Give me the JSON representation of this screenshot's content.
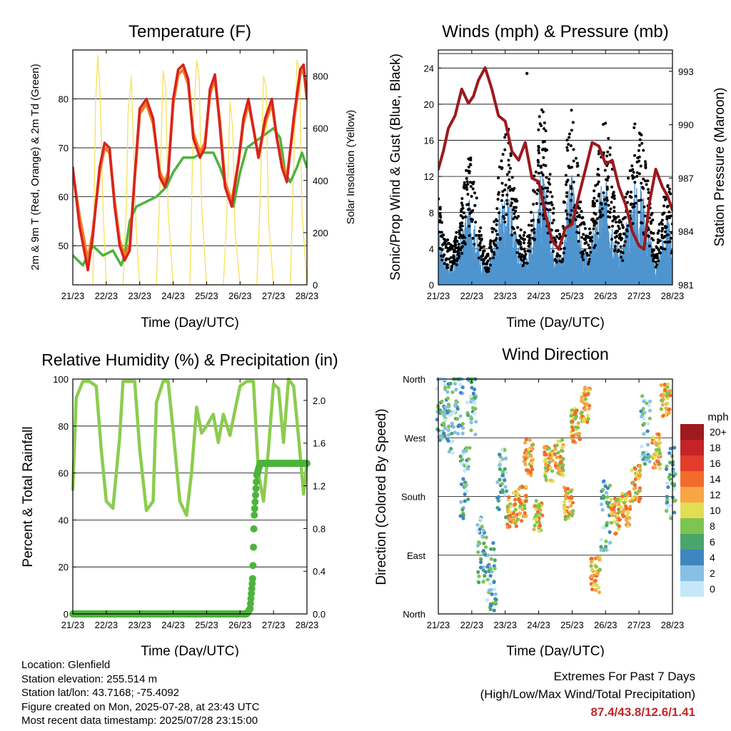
{
  "colors": {
    "temp2m": "#d7231f",
    "temp9m": "#f47d20",
    "dewpoint": "#4db33d",
    "solar": "#f7e15a",
    "sonic": "#4f95cf",
    "gust": "#000000",
    "pressure": "#9b1a1e",
    "rh": "#8ccc4f",
    "precip": "#4db33d",
    "extremes": "#c1272d"
  },
  "x_ticks": [
    "21/23",
    "22/23",
    "23/23",
    "24/23",
    "25/23",
    "26/23",
    "27/23",
    "28/23"
  ],
  "x_label": "Time (Day/UTC)",
  "chart_data": [
    {
      "id": "temperature",
      "type": "line",
      "title": "Temperature (F)",
      "xlabel": "Time (Day/UTC)",
      "ylabel": "2m & 9m T (Red, Orange) & 2m Td (Green)",
      "ylabel_right": "Solar Insolation (Yellow)",
      "ylim": [
        42,
        90
      ],
      "y_ticks": [
        50,
        60,
        70,
        80
      ],
      "ylim_right": [
        0,
        900
      ],
      "y_ticks_right": [
        0,
        200,
        400,
        600,
        800
      ],
      "x_range_days": [
        0,
        7
      ],
      "series": [
        {
          "key": "t2m",
          "color": "#d7231f",
          "x": [
            0,
            0.2,
            0.45,
            0.6,
            0.8,
            0.95,
            1.1,
            1.25,
            1.4,
            1.55,
            1.7,
            1.85,
            2.0,
            2.2,
            2.4,
            2.6,
            2.75,
            2.85,
            3.0,
            3.15,
            3.3,
            3.45,
            3.6,
            3.8,
            3.95,
            4.1,
            4.25,
            4.4,
            4.55,
            4.75,
            4.95,
            5.1,
            5.25,
            5.4,
            5.55,
            5.75,
            5.95,
            6.1,
            6.25,
            6.4,
            6.6,
            6.8,
            6.9,
            7.0
          ],
          "y": [
            66,
            54,
            45,
            52,
            66,
            71,
            70,
            58,
            50,
            47,
            49,
            64,
            78,
            80,
            76,
            64,
            62,
            64,
            80,
            86,
            87,
            84,
            72,
            68,
            70,
            82,
            85,
            74,
            62,
            58,
            67,
            76,
            80,
            74,
            68,
            76,
            80,
            72,
            66,
            63,
            76,
            86,
            87,
            80
          ]
        },
        {
          "key": "t9m",
          "color": "#f47d20",
          "x": [
            0,
            0.2,
            0.45,
            0.6,
            0.8,
            0.95,
            1.1,
            1.25,
            1.4,
            1.55,
            1.7,
            1.85,
            2.0,
            2.2,
            2.4,
            2.6,
            2.75,
            2.85,
            3.0,
            3.15,
            3.3,
            3.45,
            3.6,
            3.8,
            3.95,
            4.1,
            4.25,
            4.4,
            4.55,
            4.75,
            4.95,
            5.1,
            5.25,
            5.4,
            5.55,
            5.75,
            5.95,
            6.1,
            6.25,
            6.4,
            6.6,
            6.8,
            6.9,
            7.0
          ],
          "y": [
            65,
            56,
            47,
            53,
            65,
            70,
            69,
            59,
            51,
            48,
            50,
            64,
            77,
            79,
            75,
            65,
            63,
            65,
            79,
            85,
            86,
            83,
            73,
            69,
            71,
            81,
            84,
            75,
            63,
            59,
            67,
            75,
            79,
            74,
            68,
            75,
            79,
            72,
            67,
            64,
            75,
            85,
            86,
            80
          ]
        },
        {
          "key": "td2m",
          "color": "#4db33d",
          "x": [
            0,
            0.3,
            0.6,
            0.9,
            1.2,
            1.45,
            1.55,
            1.7,
            1.9,
            2.2,
            2.5,
            2.8,
            3.0,
            3.3,
            3.6,
            3.9,
            4.2,
            4.4,
            4.6,
            4.8,
            5.0,
            5.2,
            5.4,
            5.6,
            5.8,
            6.0,
            6.2,
            6.35,
            6.5,
            6.7,
            6.85,
            7.0
          ],
          "y": [
            48,
            46,
            50,
            48,
            49,
            46,
            48,
            55,
            58,
            59,
            60,
            62,
            65,
            68,
            68,
            69,
            69,
            66,
            62,
            58,
            65,
            70,
            71,
            72,
            73,
            74,
            72,
            65,
            63,
            66,
            69,
            66
          ]
        },
        {
          "key": "solar",
          "color": "#f7e15a",
          "axis": "right",
          "x": [
            0.6,
            0.68,
            0.75,
            0.82,
            0.9,
            1.0,
            1.3,
            1.5,
            1.6,
            1.65,
            1.75,
            1.82,
            1.9,
            2.0,
            2.3,
            2.5,
            2.6,
            2.7,
            2.78,
            2.85,
            3.0,
            3.3,
            3.5,
            3.6,
            3.7,
            3.78,
            3.85,
            4.0,
            4.3,
            4.5,
            4.6,
            4.7,
            4.78,
            4.85,
            5.0,
            5.3,
            5.5,
            5.6,
            5.7,
            5.78,
            5.85,
            6.0,
            6.3,
            6.5,
            6.6,
            6.7,
            6.78,
            6.85,
            7.0
          ],
          "y": [
            0,
            700,
            880,
            720,
            300,
            0,
            0,
            0,
            300,
            650,
            800,
            500,
            200,
            0,
            0,
            0,
            350,
            820,
            750,
            280,
            0,
            0,
            0,
            600,
            860,
            800,
            300,
            0,
            0,
            0,
            250,
            700,
            600,
            200,
            0,
            0,
            0,
            320,
            800,
            760,
            250,
            0,
            0,
            0,
            450,
            860,
            820,
            280,
            0
          ]
        }
      ]
    },
    {
      "id": "winds",
      "type": "scatter",
      "title": "Winds (mph) & Pressure (mb)",
      "xlabel": "Time (Day/UTC)",
      "ylabel": "Sonic/Prop Wind & Gust (Blue, Black)",
      "ylabel_right": "Station Pressure (Maroon)",
      "ylim": [
        0,
        26
      ],
      "y_ticks": [
        0,
        4,
        8,
        12,
        16,
        20,
        24
      ],
      "ylim_right": [
        981,
        994.2
      ],
      "y_ticks_right": [
        981,
        984,
        987,
        990,
        993
      ],
      "x_range_days": [
        0,
        7
      ],
      "series": [
        {
          "key": "wind_envelope",
          "color": "#4f95cf",
          "x": [
            0,
            0.2,
            0.4,
            0.6,
            0.8,
            0.95,
            1.1,
            1.3,
            1.5,
            1.7,
            1.9,
            2.1,
            2.3,
            2.5,
            2.7,
            2.9,
            3.1,
            3.3,
            3.5,
            3.7,
            3.85,
            4.0,
            4.15,
            4.3,
            4.5,
            4.7,
            4.9,
            5.1,
            5.3,
            5.5,
            5.7,
            5.9,
            6.1,
            6.3,
            6.5,
            6.7,
            6.85,
            7.0
          ],
          "y": [
            6,
            3,
            2,
            4,
            7,
            9,
            6,
            3,
            2,
            5,
            9,
            10,
            6,
            3,
            4,
            9,
            12,
            8,
            4,
            3,
            9,
            12,
            8,
            4,
            3,
            7,
            11,
            10,
            5,
            4,
            8,
            11,
            10,
            6,
            2,
            5,
            7,
            5
          ]
        },
        {
          "key": "gust_envelope",
          "color": "#000000",
          "x": [
            0,
            0.2,
            0.4,
            0.6,
            0.8,
            0.95,
            1.1,
            1.3,
            1.5,
            1.7,
            1.9,
            2.1,
            2.3,
            2.5,
            2.7,
            2.9,
            3.1,
            3.3,
            3.5,
            3.7,
            3.85,
            4.0,
            4.15,
            4.3,
            4.5,
            4.7,
            4.9,
            5.1,
            5.3,
            5.5,
            5.7,
            5.9,
            6.1,
            6.3,
            6.5,
            6.7,
            6.85,
            7.0
          ],
          "y": [
            9,
            5,
            4,
            6,
            11,
            14,
            10,
            5,
            3,
            8,
            14,
            16,
            10,
            5,
            6,
            13,
            20,
            13,
            6,
            5,
            15,
            18,
            13,
            7,
            5,
            11,
            17,
            16,
            8,
            6,
            12,
            17,
            15,
            10,
            4,
            8,
            11,
            8
          ]
        },
        {
          "key": "pressure",
          "color": "#9b1a1e",
          "axis": "right",
          "x": [
            0,
            0.15,
            0.3,
            0.5,
            0.7,
            0.9,
            1.05,
            1.2,
            1.4,
            1.6,
            1.8,
            2.0,
            2.2,
            2.4,
            2.6,
            2.8,
            3.0,
            3.2,
            3.4,
            3.6,
            3.8,
            4.0,
            4.2,
            4.4,
            4.6,
            4.8,
            5.0,
            5.2,
            5.4,
            5.6,
            5.8,
            6.0,
            6.15,
            6.3,
            6.5,
            6.7,
            6.85,
            7.0
          ],
          "y": [
            987.5,
            988.5,
            989.8,
            990.5,
            992.0,
            991.2,
            991.6,
            992.5,
            993.2,
            992.0,
            990.5,
            990.2,
            988.5,
            988.0,
            989.0,
            987.0,
            986.8,
            985.0,
            983.5,
            983.0,
            984.2,
            984.4,
            986.0,
            987.5,
            989.0,
            988.8,
            987.8,
            988.0,
            986.5,
            985.5,
            984.0,
            983.2,
            983.0,
            985.5,
            987.5,
            986.5,
            986.0,
            985.2
          ]
        }
      ]
    },
    {
      "id": "humidity",
      "type": "line",
      "title": "Relative Humidity (%) & Precipitation (in)",
      "xlabel": "Time (Day/UTC)",
      "ylabel": "Percent & Total Rainfall",
      "ylim": [
        0,
        100
      ],
      "y_ticks": [
        0,
        20,
        40,
        60,
        80,
        100
      ],
      "ylim_right": [
        0,
        2.2
      ],
      "y_ticks_right": [
        0.0,
        0.4,
        0.8,
        1.2,
        1.6,
        2.0
      ],
      "x_range_days": [
        0,
        7
      ],
      "series": [
        {
          "key": "rh",
          "color": "#8ccc4f",
          "x": [
            0,
            0.1,
            0.3,
            0.5,
            0.7,
            0.85,
            1.0,
            1.2,
            1.4,
            1.5,
            1.7,
            1.85,
            2.0,
            2.2,
            2.4,
            2.5,
            2.7,
            2.85,
            3.0,
            3.2,
            3.4,
            3.55,
            3.7,
            3.85,
            4.0,
            4.2,
            4.35,
            4.5,
            4.7,
            4.85,
            5.0,
            5.2,
            5.4,
            5.55,
            5.7,
            5.85,
            6.0,
            6.15,
            6.3,
            6.45,
            6.6,
            6.75,
            6.9,
            7.0
          ],
          "y": [
            53,
            92,
            99,
            99,
            97,
            70,
            48,
            45,
            75,
            99,
            99,
            99,
            70,
            44,
            48,
            90,
            99,
            99,
            78,
            48,
            42,
            60,
            88,
            77,
            80,
            85,
            73,
            85,
            76,
            87,
            97,
            99,
            99,
            60,
            48,
            70,
            98,
            96,
            73,
            100,
            97,
            75,
            51,
            65
          ]
        },
        {
          "key": "precip",
          "color": "#4db33d",
          "axis": "right",
          "x": [
            0,
            5.2,
            5.3,
            5.38,
            5.42,
            5.5,
            5.6,
            7.0
          ],
          "y": [
            0,
            0,
            0.05,
            0.35,
            0.9,
            1.3,
            1.41,
            1.41
          ]
        }
      ]
    },
    {
      "id": "direction",
      "type": "scatter",
      "title": "Wind Direction",
      "xlabel": "Time (Day/UTC)",
      "ylabel": "Direction (Colored By Speed)",
      "ylim": [
        0,
        360
      ],
      "y_ticks": [
        "North",
        "East",
        "South",
        "West",
        "North"
      ],
      "x_range_days": [
        0,
        7
      ],
      "colorbar_title": "mph",
      "colorbar_labels": [
        "20+",
        "18",
        "16",
        "14",
        "12",
        "10",
        "8",
        "6",
        "4",
        "2",
        "0"
      ],
      "colorbar_colors": [
        "#9e1a1d",
        "#c42327",
        "#e23c2a",
        "#f26b2b",
        "#f7a545",
        "#e3dc55",
        "#7dc450",
        "#4aa56a",
        "#3f86c1",
        "#87bfe5",
        "#c6e7f8"
      ],
      "series": [
        {
          "key": "clusters",
          "x": [
            0.1,
            0.3,
            0.6,
            0.8,
            1.0,
            1.3,
            1.6,
            1.9,
            2.2,
            2.5,
            2.7,
            3.0,
            3.3,
            3.6,
            3.9,
            4.1,
            4.4,
            4.7,
            5.0,
            5.3,
            5.6,
            5.9,
            6.2,
            6.5,
            6.8,
            6.95
          ],
          "y": [
            320,
            300,
            330,
            200,
            330,
            100,
            60,
            200,
            160,
            170,
            240,
            150,
            230,
            240,
            170,
            290,
            320,
            60,
            150,
            150,
            160,
            200,
            280,
            250,
            330,
            200
          ]
        }
      ]
    }
  ],
  "info": {
    "location": "Location: Glenfield",
    "elevation": "Station elevation: 255.514 m",
    "latlon": "Station lat/lon: 43.7168; -75.4092",
    "created": "Figure created on Mon, 2025-07-28, at 23:43 UTC",
    "recent": "Most recent data timestamp: 2025/07/28 23:15:00"
  },
  "extremes": {
    "title": "Extremes For Past 7 Days",
    "subtitle": "(High/Low/Max Wind/Total Precipitation)",
    "values": "87.4/43.8/12.6/1.41"
  }
}
